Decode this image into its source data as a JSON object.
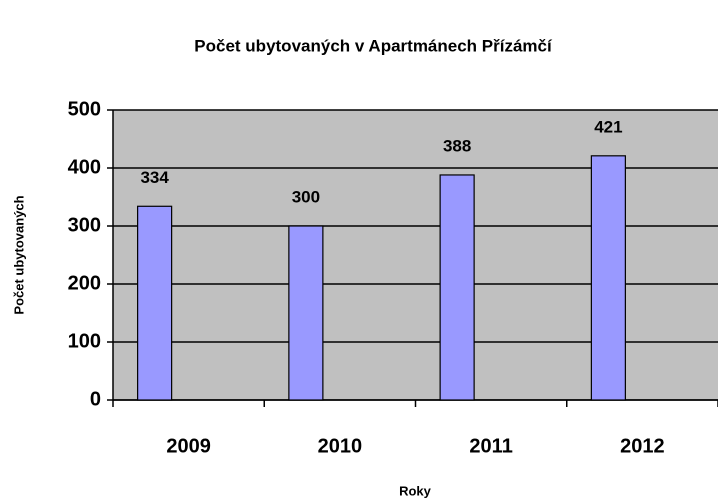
{
  "chart_data": {
    "type": "bar",
    "title": "Počet ubytovaných v Apartmánech Přízámčí",
    "x_label": "Roky",
    "y_label": "Počet ubytovaných",
    "categories": [
      "2009",
      "2010",
      "2011",
      "2012"
    ],
    "values": [
      334,
      300,
      388,
      421
    ],
    "color": "#9999ff",
    "ylim": [
      0,
      500
    ],
    "yticks": [
      0,
      100,
      200,
      300,
      400,
      500
    ],
    "grid": true
  }
}
